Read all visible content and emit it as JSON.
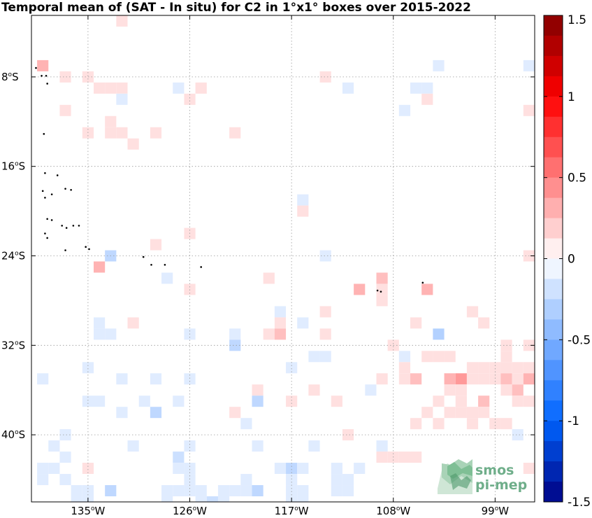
{
  "chart_data": {
    "type": "heatmap",
    "title": "Temporal mean of (SAT - In situ) for C2 in 1°x1° boxes over 2015-2022",
    "xlim": [
      -140,
      -95.5
    ],
    "ylim": [
      -46,
      -2.5
    ],
    "x_ticks": [
      {
        "value": -135,
        "label": "135",
        "suffix": "W"
      },
      {
        "value": -126,
        "label": "126",
        "suffix": "W"
      },
      {
        "value": -117,
        "label": "117",
        "suffix": "W"
      },
      {
        "value": -108,
        "label": "108",
        "suffix": "W"
      },
      {
        "value": -99,
        "label": "99",
        "suffix": "W"
      }
    ],
    "y_ticks": [
      {
        "value": -8,
        "label": "8",
        "suffix": "S"
      },
      {
        "value": -16,
        "label": "16",
        "suffix": "S"
      },
      {
        "value": -24,
        "label": "24",
        "suffix": "S"
      },
      {
        "value": -32,
        "label": "32",
        "suffix": "S"
      },
      {
        "value": -40,
        "label": "40",
        "suffix": "S"
      }
    ],
    "grid": true,
    "colorbar": {
      "min": -1.5,
      "max": 1.5,
      "levels": 24,
      "ticks": [
        {
          "value": 1.5,
          "label": "1.5"
        },
        {
          "value": 1,
          "label": "1"
        },
        {
          "value": 0.5,
          "label": "0.5"
        },
        {
          "value": 0,
          "label": "0"
        },
        {
          "value": -0.5,
          "label": "-0.5"
        },
        {
          "value": -1,
          "label": "-1"
        },
        {
          "value": -1.5,
          "label": "-1.5"
        }
      ]
    },
    "cells": [
      [
        -132,
        -3,
        0.12
      ],
      [
        -139,
        -7,
        0.3
      ],
      [
        -137,
        -8,
        0.12
      ],
      [
        -135,
        -8,
        0.12
      ],
      [
        -114,
        -8,
        0.12
      ],
      [
        -104,
        -7,
        -0.12
      ],
      [
        -96,
        -7,
        -0.12
      ],
      [
        -134,
        -9,
        0.12
      ],
      [
        -133,
        -9,
        0.12
      ],
      [
        -132,
        -9,
        0.12
      ],
      [
        -127,
        -9,
        -0.12
      ],
      [
        -125,
        -9,
        0.12
      ],
      [
        -112,
        -9,
        -0.12
      ],
      [
        -106,
        -9,
        -0.12
      ],
      [
        -105,
        -9,
        -0.12
      ],
      [
        -132,
        -10,
        -0.12
      ],
      [
        -126,
        -10,
        0.12
      ],
      [
        -105,
        -10,
        0.12
      ],
      [
        -137,
        -11,
        0.12
      ],
      [
        -107,
        -11,
        -0.12
      ],
      [
        -96,
        -11,
        0.12
      ],
      [
        -133,
        -12,
        0.12
      ],
      [
        -135,
        -13,
        0.12
      ],
      [
        -133,
        -13,
        0.12
      ],
      [
        -132,
        -13,
        0.12
      ],
      [
        -129,
        -13,
        0.12
      ],
      [
        -122,
        -13,
        0.12
      ],
      [
        -131,
        -14,
        0.12
      ],
      [
        -116,
        -19,
        -0.12
      ],
      [
        -116,
        -20,
        0.12
      ],
      [
        -126,
        -22,
        0.12
      ],
      [
        -129,
        -23,
        0.12
      ],
      [
        -133,
        -24,
        -0.25
      ],
      [
        -114,
        -24,
        -0.12
      ],
      [
        -96,
        -24,
        0.12
      ],
      [
        -134,
        -25,
        0.3
      ],
      [
        -128,
        -26,
        -0.12
      ],
      [
        -119,
        -26,
        0.12
      ],
      [
        -109,
        -26,
        0.25
      ],
      [
        -126,
        -27,
        0.12
      ],
      [
        -111,
        -27,
        0.3
      ],
      [
        -109,
        -27,
        0.12
      ],
      [
        -105,
        -27,
        0.3
      ],
      [
        -109,
        -28,
        0.12
      ],
      [
        -118,
        -29,
        -0.12
      ],
      [
        -114,
        -29,
        0.12
      ],
      [
        -101,
        -29,
        0.12
      ],
      [
        -134,
        -30,
        -0.12
      ],
      [
        -131,
        -30,
        0.12
      ],
      [
        -118,
        -30,
        0.12
      ],
      [
        -116,
        -30,
        -0.12
      ],
      [
        -106,
        -30,
        0.12
      ],
      [
        -100,
        -30,
        0.12
      ],
      [
        -134,
        -31,
        -0.12
      ],
      [
        -133,
        -31,
        -0.12
      ],
      [
        -126,
        -31,
        -0.12
      ],
      [
        -122,
        -31,
        -0.12
      ],
      [
        -119,
        -31,
        0.12
      ],
      [
        -118,
        -31,
        0.25
      ],
      [
        -114,
        -31,
        0.12
      ],
      [
        -104,
        -31,
        -0.3
      ],
      [
        -122,
        -32,
        -0.25
      ],
      [
        -108,
        -32,
        0.12
      ],
      [
        -98,
        -32,
        0.12
      ],
      [
        -96,
        -32,
        0.12
      ],
      [
        -115,
        -33,
        -0.12
      ],
      [
        -114,
        -33,
        -0.12
      ],
      [
        -107,
        -33,
        -0.12
      ],
      [
        -105,
        -33,
        0.12
      ],
      [
        -104,
        -33,
        0.12
      ],
      [
        -103,
        -33,
        0.12
      ],
      [
        -98,
        -33,
        0.12
      ],
      [
        -135,
        -34,
        -0.12
      ],
      [
        -117,
        -34,
        -0.12
      ],
      [
        -107,
        -34,
        0.12
      ],
      [
        -101,
        -34,
        0.12
      ],
      [
        -100,
        -34,
        0.12
      ],
      [
        -99,
        -34,
        0.12
      ],
      [
        -98,
        -34,
        0.12
      ],
      [
        -97,
        -34,
        0.12
      ],
      [
        -96,
        -34,
        0.12
      ],
      [
        -139,
        -35,
        -0.12
      ],
      [
        -132,
        -35,
        -0.12
      ],
      [
        -129,
        -35,
        -0.12
      ],
      [
        -126,
        -35,
        -0.12
      ],
      [
        -109,
        -35,
        0.12
      ],
      [
        -107,
        -35,
        0.12
      ],
      [
        -106,
        -35,
        0.25
      ],
      [
        -103,
        -35,
        0.3
      ],
      [
        -102,
        -35,
        0.4
      ],
      [
        -101,
        -35,
        0.12
      ],
      [
        -100,
        -35,
        0.12
      ],
      [
        -99,
        -35,
        0.12
      ],
      [
        -98,
        -35,
        0.25
      ],
      [
        -97,
        -35,
        0.12
      ],
      [
        -96,
        -35,
        0.3
      ],
      [
        -120,
        -36,
        0.12
      ],
      [
        -115,
        -36,
        0.12
      ],
      [
        -110,
        -36,
        -0.12
      ],
      [
        -103,
        -36,
        0.12
      ],
      [
        -102,
        -36,
        0.12
      ],
      [
        -98,
        -36,
        0.12
      ],
      [
        -97,
        -36,
        0.25
      ],
      [
        -135,
        -37,
        -0.12
      ],
      [
        -134,
        -37,
        -0.12
      ],
      [
        -130,
        -37,
        -0.12
      ],
      [
        -127,
        -37,
        -0.12
      ],
      [
        -120,
        -37,
        -0.25
      ],
      [
        -117,
        -37,
        0.12
      ],
      [
        -113,
        -37,
        0.12
      ],
      [
        -104,
        -37,
        0.12
      ],
      [
        -102,
        -37,
        0.12
      ],
      [
        -100,
        -37,
        0.25
      ],
      [
        -97,
        -37,
        0.12
      ],
      [
        -96,
        -37,
        0.12
      ],
      [
        -132,
        -38,
        -0.12
      ],
      [
        -129,
        -38,
        -0.25
      ],
      [
        -122,
        -38,
        0.12
      ],
      [
        -105,
        -38,
        0.12
      ],
      [
        -103,
        -38,
        0.12
      ],
      [
        -102,
        -38,
        0.12
      ],
      [
        -101,
        -38,
        0.12
      ],
      [
        -100,
        -38,
        0.12
      ],
      [
        -121,
        -39,
        -0.12
      ],
      [
        -106,
        -39,
        0.12
      ],
      [
        -104,
        -39,
        0.12
      ],
      [
        -101,
        -39,
        0.12
      ],
      [
        -99,
        -39,
        0.12
      ],
      [
        -98,
        -39,
        0.12
      ],
      [
        -137,
        -40,
        -0.12
      ],
      [
        -112,
        -40,
        0.12
      ],
      [
        -97,
        -40,
        -0.12
      ],
      [
        -138,
        -41,
        -0.12
      ],
      [
        -131,
        -41,
        -0.12
      ],
      [
        -126,
        -41,
        -0.12
      ],
      [
        -120,
        -41,
        -0.12
      ],
      [
        -115,
        -41,
        -0.12
      ],
      [
        -109,
        -41,
        -0.12
      ],
      [
        -137,
        -42,
        -0.12
      ],
      [
        -127,
        -42,
        -0.2
      ],
      [
        -109,
        -42,
        0.12
      ],
      [
        -108,
        -42,
        0.12
      ],
      [
        -107,
        -42,
        0.12
      ],
      [
        -106,
        -42,
        0.12
      ],
      [
        -139,
        -43,
        -0.12
      ],
      [
        -138,
        -43,
        -0.12
      ],
      [
        -135,
        -43,
        0.12
      ],
      [
        -127,
        -43,
        -0.12
      ],
      [
        -126,
        -43,
        -0.12
      ],
      [
        -118,
        -43,
        -0.12
      ],
      [
        -117,
        -43,
        -0.25
      ],
      [
        -116,
        -43,
        -0.12
      ],
      [
        -113,
        -43,
        -0.12
      ],
      [
        -111,
        -43,
        -0.12
      ],
      [
        -96,
        -43,
        0.12
      ],
      [
        -139,
        -44,
        -0.12
      ],
      [
        -137,
        -44,
        -0.12
      ],
      [
        -126,
        -44,
        -0.12
      ],
      [
        -121,
        -44,
        -0.12
      ],
      [
        -117,
        -44,
        -0.12
      ],
      [
        -113,
        -44,
        -0.12
      ],
      [
        -112,
        -44,
        -0.12
      ],
      [
        -136,
        -45,
        -0.12
      ],
      [
        -135,
        -45,
        -0.12
      ],
      [
        -133,
        -45,
        -0.25
      ],
      [
        -128,
        -45,
        -0.12
      ],
      [
        -127,
        -45,
        -0.12
      ],
      [
        -126,
        -45,
        -0.12
      ],
      [
        -125,
        -45,
        -0.12
      ],
      [
        -123,
        -45,
        -0.12
      ],
      [
        -122,
        -45,
        -0.12
      ],
      [
        -121,
        -45,
        -0.12
      ],
      [
        -120,
        -45,
        -0.25
      ],
      [
        -117,
        -45,
        -0.12
      ],
      [
        -116,
        -45,
        -0.12
      ],
      [
        -113,
        -45,
        -0.12
      ],
      [
        -112,
        -45,
        -0.12
      ],
      [
        -136,
        -46,
        -0.12
      ],
      [
        -135,
        -46,
        -0.12
      ],
      [
        -128,
        -46,
        -0.12
      ],
      [
        -125,
        -46,
        -0.12
      ],
      [
        -124,
        -46,
        -0.2
      ],
      [
        -123,
        -46,
        -0.12
      ],
      [
        -117,
        -46,
        -0.12
      ],
      [
        -116,
        -46,
        -0.12
      ]
    ],
    "islands": [
      [
        -139.6,
        -7.2
      ],
      [
        -139.1,
        -7.9
      ],
      [
        -138.7,
        -7.9
      ],
      [
        -138.6,
        -8.6
      ],
      [
        -138.9,
        -13.1
      ],
      [
        -138.8,
        -16.6
      ],
      [
        -137.7,
        -16.8
      ],
      [
        -139.0,
        -18.2
      ],
      [
        -138.8,
        -18.8
      ],
      [
        -138.2,
        -18.5
      ],
      [
        -137.0,
        -18.0
      ],
      [
        -136.5,
        -18.1
      ],
      [
        -138.6,
        -20.7
      ],
      [
        -138.2,
        -20.8
      ],
      [
        -137.3,
        -21.3
      ],
      [
        -136.9,
        -21.5
      ],
      [
        -136.3,
        -21.3
      ],
      [
        -135.8,
        -21.3
      ],
      [
        -138.8,
        -22.0
      ],
      [
        -138.6,
        -22.4
      ],
      [
        -137.0,
        -23.5
      ],
      [
        -135.2,
        -23.2
      ],
      [
        -134.9,
        -23.4
      ],
      [
        -130.1,
        -24.1
      ],
      [
        -129.4,
        -24.8
      ],
      [
        -128.2,
        -24.8
      ],
      [
        -125.0,
        -25.0
      ],
      [
        -109.4,
        -27.1
      ],
      [
        -109.1,
        -27.2
      ],
      [
        -105.4,
        -26.4
      ]
    ]
  },
  "logo": {
    "text_line1": "smos",
    "text_line2": "pi-mep"
  }
}
